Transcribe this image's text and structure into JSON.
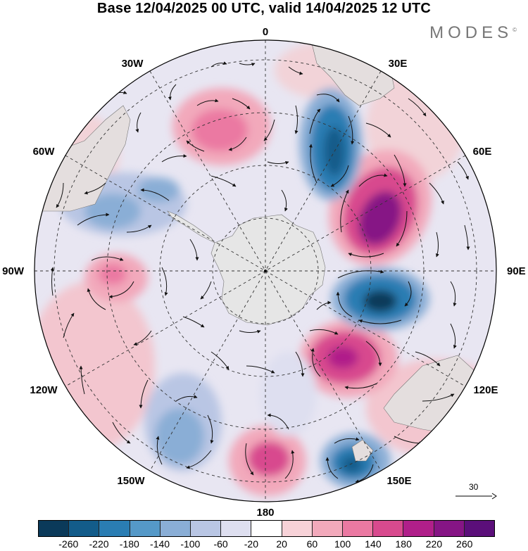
{
  "title": "Base 12/04/2025 00 UTC, valid 14/04/2025 12 UTC",
  "brand": "MODES",
  "brand_mark": "©",
  "longitude_labels": [
    "0",
    "30E",
    "60E",
    "90E",
    "120E",
    "150E",
    "180",
    "150W",
    "120W",
    "90W",
    "60W",
    "30W"
  ],
  "reference_vector": "30",
  "colorbar": {
    "ticks": [
      "-260",
      "-220",
      "-180",
      "-140",
      "-100",
      "-60",
      "-20",
      "20",
      "60",
      "100",
      "140",
      "180",
      "220",
      "260"
    ],
    "colors": [
      "#0b3a5a",
      "#135c8a",
      "#2a7db3",
      "#5599c8",
      "#8aaed6",
      "#b9c6e4",
      "#dedff0",
      "#ffffff",
      "#f7d2d8",
      "#f2a9bb",
      "#eb79a2",
      "#d84a8e",
      "#b01f8a",
      "#861585",
      "#5b0f7a"
    ]
  },
  "colors": {
    "land": "#e6e6e6",
    "grid": "#333333",
    "vector": "#111111"
  }
}
